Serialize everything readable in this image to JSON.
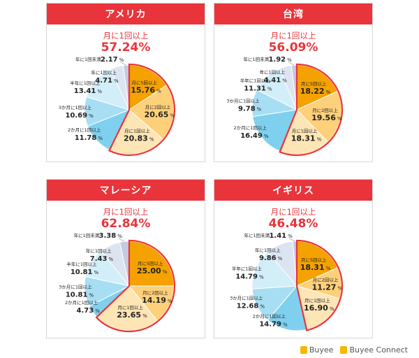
{
  "panels": [
    {
      "country": "アメリカ",
      "summary_label": "月に1回以上",
      "summary_value": "57.24%",
      "slices": [
        {
          "label": "月に5回以上",
          "value": 15.76,
          "color": "#f5a200"
        },
        {
          "label": "月に2回以上",
          "value": 20.65,
          "color": "#ffd07a"
        },
        {
          "label": "月に1回以上",
          "value": 20.83,
          "color": "#fde5b5"
        },
        {
          "label": "2か月に1回以上",
          "value": 11.78,
          "color": "#7fd0ee"
        },
        {
          "label": "3か月に1回以上",
          "value": 10.69,
          "color": "#a7def3"
        },
        {
          "label": "半年に1回以上",
          "value": 13.41,
          "color": "#d2eef9"
        },
        {
          "label": "年に1回以上",
          "value": 4.71,
          "color": "#dde4f1"
        },
        {
          "label": "年に1回未満",
          "value": 2.17,
          "color": "#c4cbe0"
        }
      ]
    },
    {
      "country": "台湾",
      "summary_label": "月に1回以上",
      "summary_value": "56.09%",
      "slices": [
        {
          "label": "月に5回以上",
          "value": 18.22,
          "color": "#f5a200"
        },
        {
          "label": "月に2回以上",
          "value": 19.56,
          "color": "#ffd07a"
        },
        {
          "label": "月に1回以上",
          "value": 18.31,
          "color": "#fde5b5"
        },
        {
          "label": "2か月に1回以上",
          "value": 16.49,
          "color": "#7fd0ee"
        },
        {
          "label": "3か月に1回以上",
          "value": 9.78,
          "color": "#a7def3"
        },
        {
          "label": "半年に1回以上",
          "value": 11.31,
          "color": "#d2eef9"
        },
        {
          "label": "年に1回以上",
          "value": 4.41,
          "color": "#dde4f1"
        },
        {
          "label": "年に1回未満",
          "value": 1.92,
          "color": "#c4cbe0"
        }
      ]
    },
    {
      "country": "マレーシア",
      "summary_label": "月に1回以上",
      "summary_value": "62.84%",
      "slices": [
        {
          "label": "月に5回以上",
          "value": 25.0,
          "color": "#f5a200"
        },
        {
          "label": "月に2回以上",
          "value": 14.19,
          "color": "#ffd07a"
        },
        {
          "label": "月に1回以上",
          "value": 23.65,
          "color": "#fde5b5"
        },
        {
          "label": "2か月に1回以上",
          "value": 4.73,
          "color": "#7fd0ee"
        },
        {
          "label": "3か月に1回以上",
          "value": 10.81,
          "color": "#a7def3"
        },
        {
          "label": "半年に1回以上",
          "value": 10.81,
          "color": "#d2eef9"
        },
        {
          "label": "年に1回以上",
          "value": 7.43,
          "color": "#dde4f1"
        },
        {
          "label": "年に1回未満",
          "value": 3.38,
          "color": "#c4cbe0"
        }
      ]
    },
    {
      "country": "イギリス",
      "summary_label": "月に1回以上",
      "summary_value": "46.48%",
      "slices": [
        {
          "label": "月に5回以上",
          "value": 18.31,
          "color": "#f5a200"
        },
        {
          "label": "月に2回以上",
          "value": 11.27,
          "color": "#ffd07a"
        },
        {
          "label": "月に1回以上",
          "value": 16.9,
          "color": "#fde5b5"
        },
        {
          "label": "2か月に1回以上",
          "value": 14.79,
          "color": "#7fd0ee"
        },
        {
          "label": "3か月に1回以上",
          "value": 12.68,
          "color": "#a7def3"
        },
        {
          "label": "半年に1回以上",
          "value": 14.79,
          "color": "#d2eef9"
        },
        {
          "label": "年に1回以上",
          "value": 9.86,
          "color": "#dde4f1"
        },
        {
          "label": "年に1回未満",
          "value": 1.41,
          "color": "#c4cbe0"
        }
      ]
    }
  ],
  "chart_data": [
    {
      "type": "pie",
      "title": "アメリカ",
      "categories": [
        "月に5回以上",
        "月に2回以上",
        "月に1回以上",
        "2か月に1回以上",
        "3か月に1回以上",
        "半年に1回以上",
        "年に1回以上",
        "年に1回未満"
      ],
      "values": [
        15.76,
        20.65,
        20.83,
        11.78,
        10.69,
        13.41,
        4.71,
        2.17
      ]
    },
    {
      "type": "pie",
      "title": "台湾",
      "categories": [
        "月に5回以上",
        "月に2回以上",
        "月に1回以上",
        "2か月に1回以上",
        "3か月に1回以上",
        "半年に1回以上",
        "年に1回以上",
        "年に1回未満"
      ],
      "values": [
        18.22,
        19.56,
        18.31,
        16.49,
        9.78,
        11.31,
        4.41,
        1.92
      ]
    },
    {
      "type": "pie",
      "title": "マレーシア",
      "categories": [
        "月に5回以上",
        "月に2回以上",
        "月に1回以上",
        "2か月に1回以上",
        "3か月に1回以上",
        "半年に1回以上",
        "年に1回以上",
        "年に1回未満"
      ],
      "values": [
        25.0,
        14.19,
        23.65,
        4.73,
        10.81,
        10.81,
        7.43,
        3.38
      ]
    },
    {
      "type": "pie",
      "title": "イギリス",
      "categories": [
        "月に5回以上",
        "月に2回以上",
        "月に1回以上",
        "2か月に1回以上",
        "3か月に1回以上",
        "半年に1回以上",
        "年に1回以上",
        "年に1回未満"
      ],
      "values": [
        18.31,
        11.27,
        16.9,
        14.79,
        12.68,
        14.79,
        9.86,
        1.41
      ]
    }
  ],
  "footer": {
    "brand1": "Buyee",
    "brand2": "Buyee Connect"
  },
  "colors": {
    "accent": "#e9343b",
    "highlight_border": "#e9343b"
  }
}
